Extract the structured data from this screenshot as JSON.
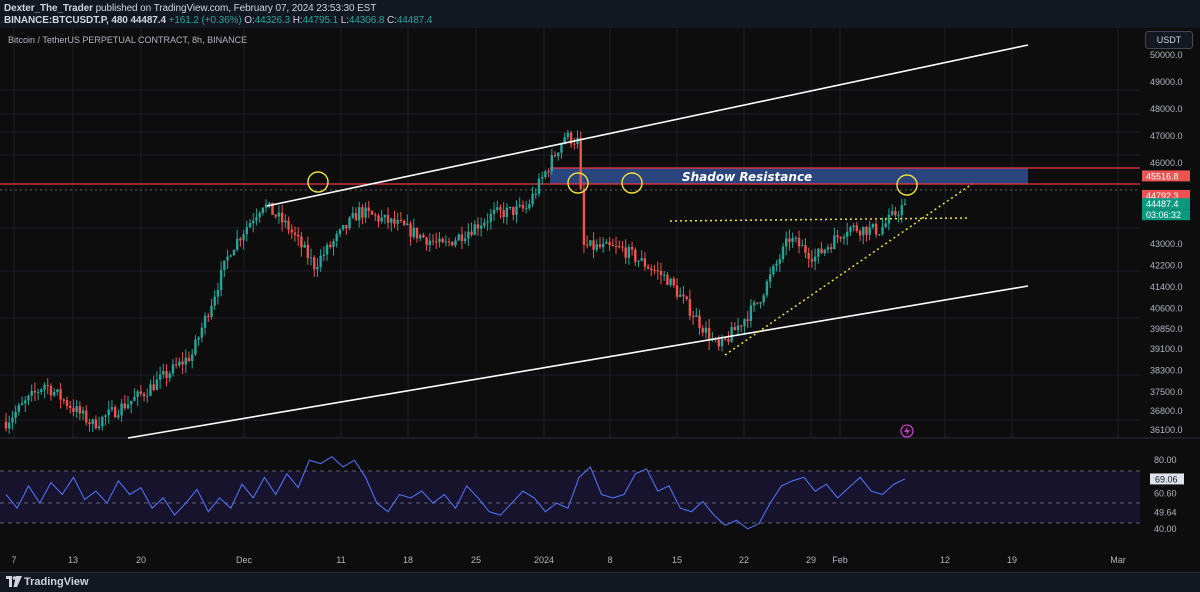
{
  "header": {
    "author": "Dexter_The_Trader",
    "published": "published on TradingView.com, February 07, 2024 23:53:30 EST",
    "symbol_code": "BINANCE:BTCUSDT.P, 480",
    "last": "44487.4",
    "change": "+161.2 (+0.36%)",
    "open_label": "O:",
    "open": "44326.3",
    "high_label": "H:",
    "high": "44795.1",
    "low_label": "L:",
    "low": "44306.8",
    "close_label": "C:",
    "close": "44487.4"
  },
  "symbol_title": "Bitcoin / TetherUS PERPETUAL CONTRACT, 8h, BINANCE",
  "currency_button": "USDT",
  "annotation": "Shadow Resistance",
  "footer": {
    "brand": "TradingView"
  },
  "colors": {
    "background": "#0d0d0d",
    "up": "#26a69a",
    "down": "#ef5350",
    "resistance_zone": "#2d4a8a",
    "resistance_line": "#f23645",
    "rsi_line": "#4f6ff0",
    "dotted": "#f0e23c",
    "circle": "#f0e23c"
  },
  "chart_data": [
    {
      "type": "candlestick",
      "title": "Bitcoin / TetherUS PERPETUAL CONTRACT, 8h, BINANCE",
      "price_axis": [
        "50000.0",
        "49000.0",
        "48000.0",
        "47000.0",
        "46000.0",
        "43000.0",
        "42200.0",
        "41400.0",
        "40600.0",
        "39850.0",
        "39100.0",
        "38300.0",
        "37500.0",
        "36800.0",
        "36100.0"
      ],
      "time_axis": [
        "7",
        "13",
        "20",
        "Dec",
        "11",
        "18",
        "25",
        "2024",
        "8",
        "15",
        "22",
        "29",
        "Feb",
        "12",
        "19",
        "Mar"
      ],
      "ylim": [
        35800,
        51000
      ],
      "price_labels": [
        {
          "value": "45516.8",
          "kind": "resistance"
        },
        {
          "value": "44792.3",
          "kind": "resistance"
        },
        {
          "value": "44487.4",
          "kind": "last"
        },
        {
          "value": "03:06:32",
          "kind": "countdown"
        }
      ],
      "anchors": [
        {
          "bar": 0,
          "price": 36400
        },
        {
          "bar": 12,
          "price": 37800
        },
        {
          "bar": 27,
          "price": 36300
        },
        {
          "bar": 42,
          "price": 37400
        },
        {
          "bar": 58,
          "price": 38900
        },
        {
          "bar": 70,
          "price": 42800
        },
        {
          "bar": 80,
          "price": 44500
        },
        {
          "bar": 88,
          "price": 43600
        },
        {
          "bar": 96,
          "price": 42200
        },
        {
          "bar": 110,
          "price": 44200
        },
        {
          "bar": 122,
          "price": 43700
        },
        {
          "bar": 136,
          "price": 42900
        },
        {
          "bar": 152,
          "price": 44100
        },
        {
          "bar": 162,
          "price": 44300
        },
        {
          "bar": 174,
          "price": 47000
        },
        {
          "bar": 178,
          "price": 46800
        },
        {
          "bar": 180,
          "price": 42900
        },
        {
          "bar": 192,
          "price": 42800
        },
        {
          "bar": 206,
          "price": 41700
        },
        {
          "bar": 222,
          "price": 39100
        },
        {
          "bar": 234,
          "price": 40800
        },
        {
          "bar": 244,
          "price": 43200
        },
        {
          "bar": 252,
          "price": 42500
        },
        {
          "bar": 262,
          "price": 43600
        },
        {
          "bar": 272,
          "price": 43500
        },
        {
          "bar": 280,
          "price": 44487
        }
      ],
      "bars_total": 281
    },
    {
      "type": "line",
      "title": "RSI",
      "levels": [
        "80.00",
        "60.60",
        "49.64",
        "40.00"
      ],
      "last_value": "69.06",
      "ylim": [
        30,
        90
      ],
      "series": [
        {
          "values": [
            60,
            52,
            65,
            55,
            67,
            60,
            70,
            57,
            62,
            55,
            68,
            60,
            64,
            52,
            58,
            48,
            55,
            63,
            50,
            58,
            52,
            66,
            58,
            70,
            60,
            72,
            64,
            80,
            78,
            82,
            76,
            80,
            70,
            55,
            50,
            60,
            58,
            62,
            55,
            60,
            52,
            65,
            58,
            50,
            48,
            55,
            62,
            58,
            50,
            55,
            52,
            70,
            76,
            60,
            58,
            60,
            72,
            75,
            62,
            65,
            52,
            50,
            56,
            48,
            42,
            45,
            40,
            43,
            55,
            65,
            68,
            70,
            62,
            66,
            58,
            64,
            70,
            62,
            60,
            66,
            69.06
          ]
        }
      ]
    }
  ]
}
